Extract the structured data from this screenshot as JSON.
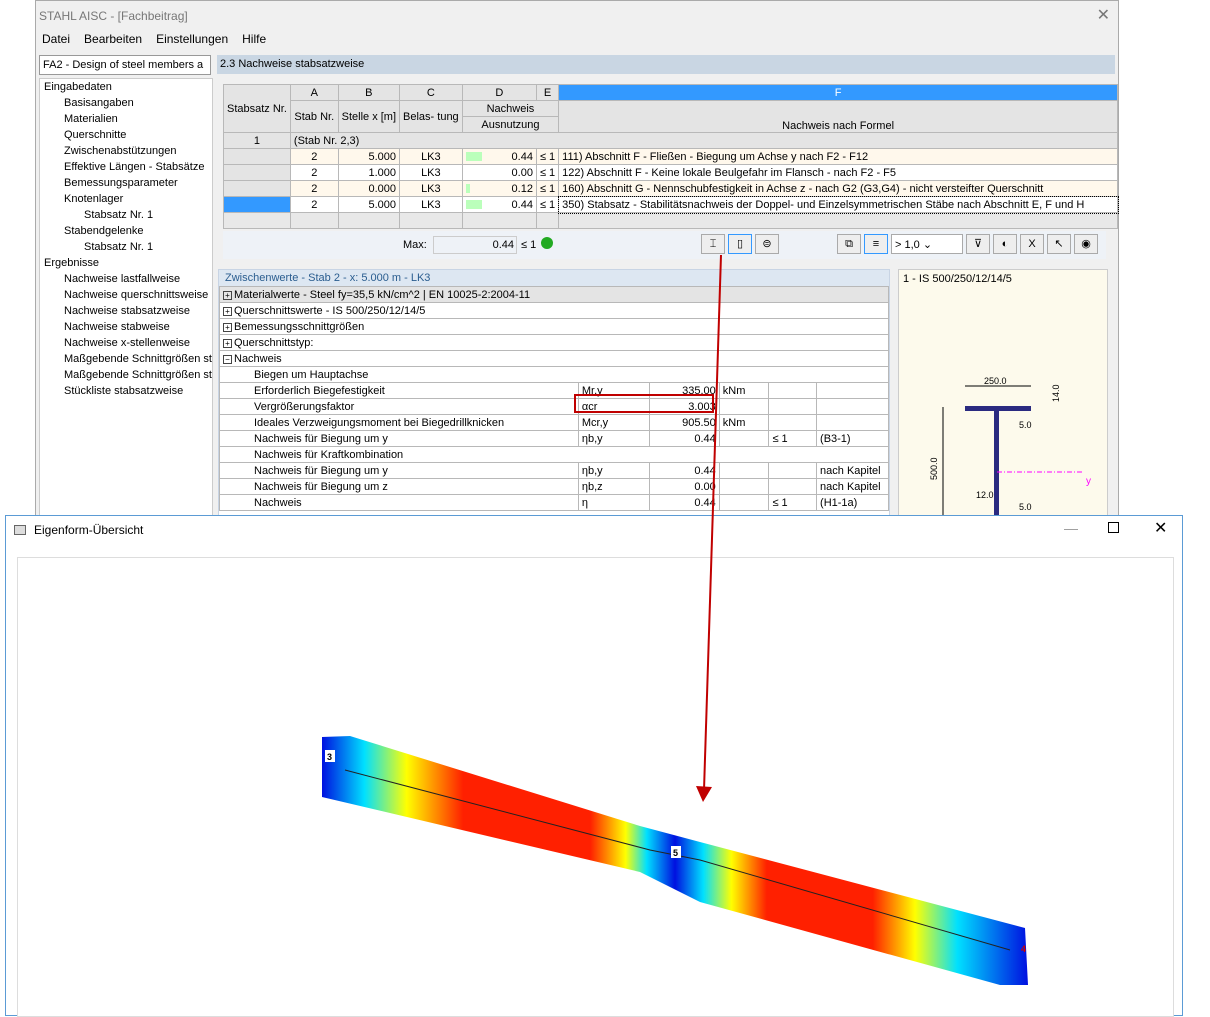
{
  "window": {
    "title": "STAHL AISC - [Fachbeitrag]",
    "menu": [
      "Datei",
      "Bearbeiten",
      "Einstellungen",
      "Hilfe"
    ]
  },
  "combo": "FA2 - Design of steel members a",
  "tree": [
    {
      "label": "Eingabedaten",
      "level": 0
    },
    {
      "label": "Basisangaben",
      "level": 1
    },
    {
      "label": "Materialien",
      "level": 1
    },
    {
      "label": "Querschnitte",
      "level": 1
    },
    {
      "label": "Zwischenabstützungen",
      "level": 1
    },
    {
      "label": "Effektive Längen - Stabsätze",
      "level": 1
    },
    {
      "label": "Bemessungsparameter",
      "level": 1
    },
    {
      "label": "Knotenlager",
      "level": 1
    },
    {
      "label": "Stabsatz Nr. 1",
      "level": 2
    },
    {
      "label": "Stabendgelenke",
      "level": 1
    },
    {
      "label": "Stabsatz Nr. 1",
      "level": 2
    },
    {
      "label": "Ergebnisse",
      "level": 0
    },
    {
      "label": "Nachweise lastfallweise",
      "level": 1
    },
    {
      "label": "Nachweise querschnittsweise",
      "level": 1
    },
    {
      "label": "Nachweise stabsatzweise",
      "level": 1
    },
    {
      "label": "Nachweise stabweise",
      "level": 1
    },
    {
      "label": "Nachweise x-stellenweise",
      "level": 1
    },
    {
      "label": "Maßgebende Schnittgrößen sta",
      "level": 1
    },
    {
      "label": "Maßgebende Schnittgrößen sta",
      "level": 1
    },
    {
      "label": "Stückliste stabsatzweise",
      "level": 1
    }
  ],
  "section_title": "2.3 Nachweise stabsatzweise",
  "table": {
    "col_letters": [
      "A",
      "B",
      "C",
      "D",
      "E",
      "F"
    ],
    "headers": {
      "set": "Stabsatz Nr.",
      "a": "Stab Nr.",
      "b": "Stelle x [m]",
      "c": "Belas- tung",
      "d1": "Nachweis",
      "d2": "Ausnutzung",
      "f": "Nachweis nach Formel"
    },
    "group": {
      "nr": "1",
      "label": "(Stab Nr. 2,3)"
    },
    "rows": [
      {
        "stab": "2",
        "x": "5.000",
        "lk": "LK3",
        "ratio": "0.44",
        "le": "≤ 1",
        "formula": "111) Abschnitt F - Fließen - Biegung um Achse y nach F2 - F12",
        "fill": 0.44
      },
      {
        "stab": "2",
        "x": "1.000",
        "lk": "LK3",
        "ratio": "0.00",
        "le": "≤ 1",
        "formula": "122) Abschnitt F - Keine lokale Beulgefahr im Flansch - nach F2 - F5",
        "fill": 0
      },
      {
        "stab": "2",
        "x": "0.000",
        "lk": "LK3",
        "ratio": "0.12",
        "le": "≤ 1",
        "formula": "160) Abschnitt G - Nennschubfestigkeit in Achse z - nach G2 (G3,G4) - nicht versteifter Querschnitt",
        "fill": 0.12
      },
      {
        "stab": "2",
        "x": "5.000",
        "lk": "LK3",
        "ratio": "0.44",
        "le": "≤ 1",
        "formula": "350) Stabsatz - Stabilitätsnachweis der Doppel- und Einzelsymmetrischen Stäbe nach Abschnitt E, F und H",
        "fill": 0.44
      }
    ],
    "max_label": "Max:",
    "max_value": "0.44",
    "max_le": "≤ 1"
  },
  "toolbar": {
    "filter_value": "> 1,0"
  },
  "intermediate": {
    "title": "Zwischenwerte - Stab 2 - x: 5.000 m - LK3",
    "groups": [
      "Materialwerte - Steel fy=35,5 kN/cm^2 | EN 10025-2:2004-11",
      "Querschnittswerte  -  IS 500/250/12/14/5",
      "Bemessungsschnittgrößen",
      "Querschnittstyp:",
      "Nachweis"
    ],
    "rows": [
      {
        "label": "Biegen um Hauptachse",
        "sym": "",
        "val": "",
        "unit": "",
        "le": "",
        "ref": ""
      },
      {
        "label": "Erforderlich Biegefestigkeit",
        "sym": "Mr,y",
        "val": "335.00",
        "unit": "kNm",
        "le": "",
        "ref": ""
      },
      {
        "label": "Vergrößerungsfaktor",
        "sym": "αcr",
        "val": "3.003",
        "unit": "",
        "le": "",
        "ref": ""
      },
      {
        "label": "Ideales Verzweigungsmoment bei Biegedrillknicken",
        "sym": "Mcr,y",
        "val": "905.50",
        "unit": "kNm",
        "le": "",
        "ref": ""
      },
      {
        "label": "Nachweis für Biegung um y",
        "sym": "ηb,y",
        "val": "0.44",
        "unit": "",
        "le": "≤ 1",
        "ref": "(B3-1)"
      },
      {
        "label": "Nachweis für Kraftkombination",
        "sym": "",
        "val": "",
        "unit": "",
        "le": "",
        "ref": ""
      },
      {
        "label": "Nachweis für Biegung um y",
        "sym": "ηb,y",
        "val": "0.44",
        "unit": "",
        "le": "",
        "ref": "nach Kapitel"
      },
      {
        "label": "Nachweis für Biegung um z",
        "sym": "ηb,z",
        "val": "0.00",
        "unit": "",
        "le": "",
        "ref": "nach Kapitel"
      },
      {
        "label": "Nachweis",
        "sym": "η",
        "val": "0.44",
        "unit": "",
        "le": "≤ 1",
        "ref": "(H1-1a)"
      }
    ]
  },
  "section_view": {
    "title": "1 - IS 500/250/12/14/5",
    "dims": {
      "b": "250.0",
      "tf": "14.0",
      "h": "500.0",
      "tw": "12.0",
      "weld1": "5.0",
      "weld2": "5.0",
      "axis": "y"
    }
  },
  "eigen_window": {
    "title": "Eigenform-Übersicht",
    "nodes": [
      "3",
      "5",
      "4"
    ]
  },
  "colors": {
    "highlight": "#c00000",
    "selected": "#3399ff",
    "header": "#c9d6e3"
  }
}
